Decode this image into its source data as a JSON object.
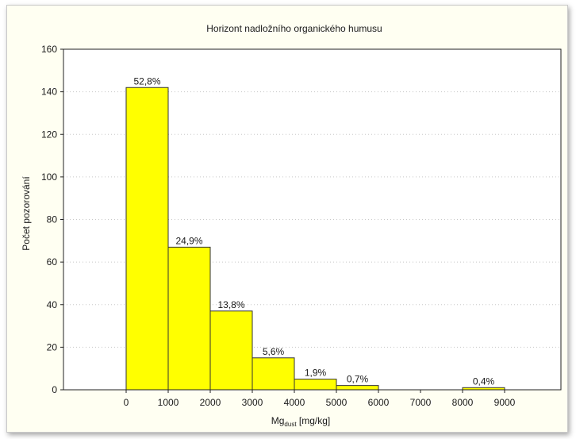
{
  "chart_data": {
    "type": "bar",
    "title": "Horizont nadložního organického humusu",
    "ylabel": "Počet pozorování",
    "xlabel_main": "Mg",
    "xlabel_sub": "dust",
    "xlabel_unit": "[mg/kg]",
    "ylim": [
      0,
      160
    ],
    "y_ticks": [
      0,
      20,
      40,
      60,
      80,
      100,
      120,
      140,
      160
    ],
    "x_ticks": [
      0,
      1000,
      2000,
      3000,
      4000,
      5000,
      6000,
      7000,
      8000,
      9000
    ],
    "bins": [
      {
        "from": 0,
        "to": 1000,
        "value": 142,
        "label": "52,8%"
      },
      {
        "from": 1000,
        "to": 2000,
        "value": 67,
        "label": "24,9%"
      },
      {
        "from": 2000,
        "to": 3000,
        "value": 37,
        "label": "13,8%"
      },
      {
        "from": 3000,
        "to": 4000,
        "value": 15,
        "label": "5,6%"
      },
      {
        "from": 4000,
        "to": 5000,
        "value": 5,
        "label": "1,9%"
      },
      {
        "from": 5000,
        "to": 6000,
        "value": 2,
        "label": "0,7%"
      },
      {
        "from": 6000,
        "to": 7000,
        "value": 0,
        "label": ""
      },
      {
        "from": 7000,
        "to": 8000,
        "value": 0,
        "label": ""
      },
      {
        "from": 8000,
        "to": 9000,
        "value": 1,
        "label": "0,4%"
      }
    ],
    "bar_color": "#ffff00",
    "bar_edge": "#333333",
    "grid": true
  }
}
